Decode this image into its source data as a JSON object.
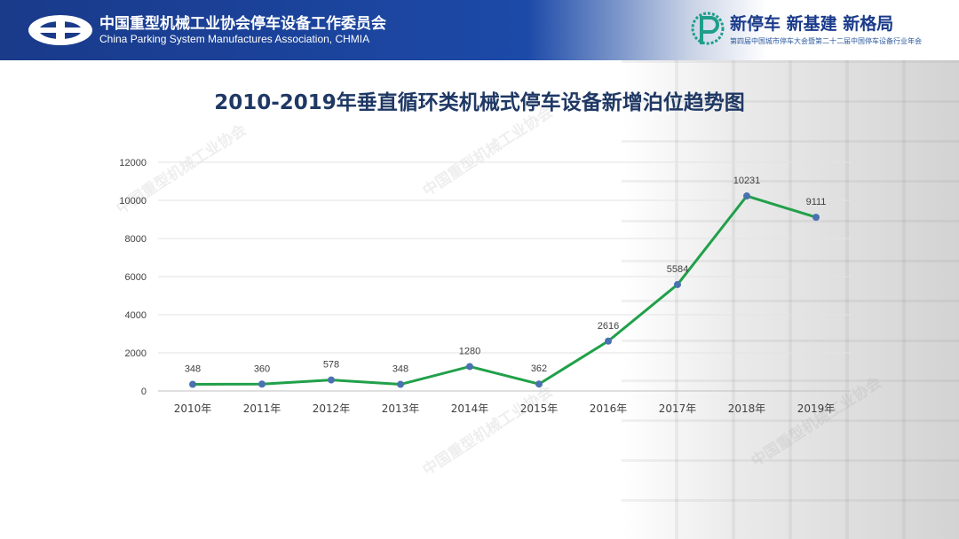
{
  "header": {
    "association_cn": "中国重型机械工业协会停车设备工作委员会",
    "association_en": "China Parking System Manufactures Association, CHMIA",
    "slogan": "新停车  新基建  新格局",
    "slogan_sub": "第四届中国城市停车大会暨第二十二届中国停车设备行业年会"
  },
  "watermark_text": "中国重型机械工业协会",
  "colors": {
    "header_blue": "#1a3a8a",
    "line": "#21a04a",
    "marker": "#4a72b0",
    "title": "#1f3864"
  },
  "chart_data": {
    "type": "line",
    "title": "2010-2019年垂直循环类机械式停车设备新增泊位趋势图",
    "categories": [
      "2010年",
      "2011年",
      "2012年",
      "2013年",
      "2014年",
      "2015年",
      "2016年",
      "2017年",
      "2018年",
      "2019年"
    ],
    "values": [
      348,
      360,
      578,
      348,
      1280,
      362,
      2616,
      5584,
      10231,
      9111
    ],
    "data_labels": [
      "348",
      "360",
      "578",
      "348",
      "1280",
      "362",
      "2616",
      "5584",
      "10231",
      "9111"
    ],
    "ylim": [
      0,
      12000
    ],
    "yticks": [
      0,
      2000,
      4000,
      6000,
      8000,
      10000,
      12000
    ],
    "ytick_labels": [
      "0",
      "2000",
      "4000",
      "6000",
      "8000",
      "10000",
      "12000"
    ],
    "grid": "horizontal",
    "legend": "none",
    "xlabel": "",
    "ylabel": ""
  }
}
